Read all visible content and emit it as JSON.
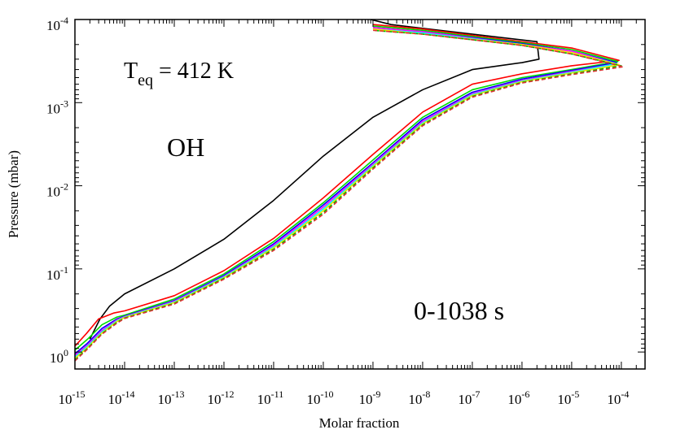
{
  "chart_data": {
    "type": "line",
    "title": "",
    "xlabel": "Molar fraction",
    "ylabel": "Pressure (mbar)",
    "x_scale": "log",
    "y_scale": "log",
    "y_inverted": true,
    "xlim": [
      1e-15,
      0.0003
    ],
    "ylim": [
      1.6,
      0.0001
    ],
    "grid": false,
    "x_ticks": [
      {
        "base": "10",
        "exp": "-15"
      },
      {
        "base": "10",
        "exp": "-14"
      },
      {
        "base": "10",
        "exp": "-13"
      },
      {
        "base": "10",
        "exp": "-12"
      },
      {
        "base": "10",
        "exp": "-11"
      },
      {
        "base": "10",
        "exp": "-10"
      },
      {
        "base": "10",
        "exp": "-9"
      },
      {
        "base": "10",
        "exp": "-8"
      },
      {
        "base": "10",
        "exp": "-7"
      },
      {
        "base": "10",
        "exp": "-6"
      },
      {
        "base": "10",
        "exp": "-5"
      },
      {
        "base": "10",
        "exp": "-4"
      }
    ],
    "y_ticks": [
      {
        "base": "10",
        "exp": "-4"
      },
      {
        "base": "10",
        "exp": "-3"
      },
      {
        "base": "10",
        "exp": "-2"
      },
      {
        "base": "10",
        "exp": "-1"
      },
      {
        "base": "10",
        "exp": "0"
      }
    ],
    "annotations": {
      "teq_main": "T",
      "teq_sub": "eq",
      "teq_value": " = 412 K",
      "species": "OH",
      "time_range": "0-1038 s"
    },
    "series": [
      {
        "color": "#000000",
        "dashed": false,
        "points": [
          [
            2e-15,
            0.7
          ],
          [
            3.2e-15,
            0.4
          ],
          [
            5e-15,
            0.28
          ],
          [
            1e-14,
            0.2
          ],
          [
            1e-13,
            0.1
          ],
          [
            1e-12,
            0.044
          ],
          [
            1e-11,
            0.015
          ],
          [
            1e-10,
            0.0044
          ],
          [
            1e-09,
            0.0015
          ],
          [
            1e-08,
            0.0007
          ],
          [
            1e-07,
            0.0004
          ],
          [
            1e-06,
            0.00033
          ],
          [
            2.2e-06,
            0.0003
          ],
          [
            2e-06,
            0.000185
          ],
          [
            2.3e-09,
            0.000115
          ],
          [
            9e-10,
            0.0001
          ]
        ]
      },
      {
        "color": "#ff0000",
        "dashed": false,
        "points": [
          [
            1e-15,
            0.85
          ],
          [
            1.7e-15,
            0.6
          ],
          [
            3e-15,
            0.4
          ],
          [
            6e-15,
            0.34
          ],
          [
            1e-14,
            0.32
          ],
          [
            1e-13,
            0.21
          ],
          [
            1e-12,
            0.105
          ],
          [
            1e-11,
            0.043
          ],
          [
            1e-10,
            0.014
          ],
          [
            1e-09,
            0.0042
          ],
          [
            1e-08,
            0.0013
          ],
          [
            1e-07,
            0.0006
          ],
          [
            1e-06,
            0.00045
          ],
          [
            1e-05,
            0.00036
          ],
          [
            9e-05,
            0.00031
          ],
          [
            1e-05,
            0.00022
          ],
          [
            1e-06,
            0.000185
          ],
          [
            1e-08,
            0.00013
          ],
          [
            1e-09,
            0.000115
          ]
        ]
      },
      {
        "color": "#00dd00",
        "dashed": false,
        "points": [
          [
            1e-15,
            0.95
          ],
          [
            1.8e-15,
            0.7
          ],
          [
            3.5e-15,
            0.47
          ],
          [
            7e-15,
            0.38
          ],
          [
            1e-14,
            0.36
          ],
          [
            1e-13,
            0.23
          ],
          [
            1e-12,
            0.115
          ],
          [
            1e-11,
            0.047
          ],
          [
            1e-10,
            0.016
          ],
          [
            1e-09,
            0.0049
          ],
          [
            1e-08,
            0.0015
          ],
          [
            1e-07,
            0.0007
          ],
          [
            1e-06,
            0.0005
          ],
          [
            1e-05,
            0.0004
          ],
          [
            8.5e-05,
            0.00032
          ],
          [
            1e-05,
            0.00023
          ],
          [
            1e-06,
            0.00019
          ],
          [
            1e-08,
            0.000135
          ],
          [
            1e-09,
            0.00012
          ]
        ]
      },
      {
        "color": "#0000ff",
        "dashed": false,
        "points": [
          [
            1e-15,
            1.05
          ],
          [
            1.8e-15,
            0.78
          ],
          [
            3.5e-15,
            0.52
          ],
          [
            7e-15,
            0.4
          ],
          [
            1e-14,
            0.37
          ],
          [
            1e-13,
            0.24
          ],
          [
            1e-12,
            0.12
          ],
          [
            1e-11,
            0.05
          ],
          [
            1e-10,
            0.017
          ],
          [
            1e-09,
            0.0053
          ],
          [
            1e-08,
            0.0016
          ],
          [
            1e-07,
            0.00075
          ],
          [
            1e-06,
            0.00052
          ],
          [
            1e-05,
            0.00041
          ],
          [
            8e-05,
            0.00033
          ],
          [
            1e-05,
            0.00024
          ],
          [
            1e-06,
            0.000195
          ],
          [
            1e-08,
            0.00014
          ],
          [
            1e-09,
            0.000125
          ]
        ]
      },
      {
        "color": "#ff00ff",
        "dashed": false,
        "points": [
          [
            1e-15,
            1.1
          ],
          [
            1.8e-15,
            0.82
          ],
          [
            3.5e-15,
            0.55
          ],
          [
            7e-15,
            0.41
          ],
          [
            1e-14,
            0.375
          ],
          [
            1e-13,
            0.245
          ],
          [
            1e-12,
            0.123
          ],
          [
            1e-11,
            0.052
          ],
          [
            1e-10,
            0.018
          ],
          [
            1e-09,
            0.0055
          ],
          [
            1e-08,
            0.00168
          ],
          [
            1e-07,
            0.00078
          ],
          [
            1e-06,
            0.00054
          ],
          [
            1e-05,
            0.00042
          ],
          [
            8e-05,
            0.00034
          ],
          [
            1e-05,
            0.00024
          ],
          [
            1e-06,
            0.0002
          ],
          [
            1e-08,
            0.00014
          ],
          [
            1e-09,
            0.000125
          ]
        ]
      },
      {
        "color": "#00ffff",
        "dashed": false,
        "points": [
          [
            1e-15,
            1.15
          ],
          [
            1.8e-15,
            0.85
          ],
          [
            3.5e-15,
            0.57
          ],
          [
            7e-15,
            0.42
          ],
          [
            1e-14,
            0.38
          ],
          [
            1e-13,
            0.25
          ],
          [
            1e-12,
            0.125
          ],
          [
            1e-11,
            0.054
          ],
          [
            1e-10,
            0.019
          ],
          [
            1e-09,
            0.0057
          ],
          [
            1e-08,
            0.00175
          ],
          [
            1e-07,
            0.0008
          ],
          [
            1e-06,
            0.00055
          ],
          [
            1e-05,
            0.00043
          ],
          [
            8e-05,
            0.00034
          ],
          [
            1e-05,
            0.00025
          ],
          [
            1e-06,
            0.0002
          ],
          [
            1e-08,
            0.000145
          ],
          [
            1e-09,
            0.00013
          ]
        ]
      },
      {
        "color": "#ffdd00",
        "dashed": false,
        "points": [
          [
            1e-15,
            1.2
          ],
          [
            1.8e-15,
            0.88
          ],
          [
            3.5e-15,
            0.59
          ],
          [
            7e-15,
            0.43
          ],
          [
            1e-14,
            0.385
          ],
          [
            1e-13,
            0.255
          ],
          [
            1e-12,
            0.128
          ],
          [
            1e-11,
            0.056
          ],
          [
            1e-10,
            0.02
          ],
          [
            1e-09,
            0.0059
          ],
          [
            1e-08,
            0.0018
          ],
          [
            1e-07,
            0.00082
          ],
          [
            1e-06,
            0.00056
          ],
          [
            1e-05,
            0.00044
          ],
          [
            9e-05,
            0.00035
          ],
          [
            1e-05,
            0.00025
          ],
          [
            1e-06,
            0.0002
          ],
          [
            1e-08,
            0.00015
          ],
          [
            1e-09,
            0.00013
          ]
        ]
      },
      {
        "color": "#00bb00",
        "dashed": true,
        "points": [
          [
            1e-15,
            1.25
          ],
          [
            1.8e-15,
            0.9
          ],
          [
            3.5e-15,
            0.6
          ],
          [
            7e-15,
            0.44
          ],
          [
            1e-14,
            0.39
          ],
          [
            1e-13,
            0.26
          ],
          [
            1e-12,
            0.13
          ],
          [
            1e-11,
            0.058
          ],
          [
            1e-10,
            0.021
          ],
          [
            1e-09,
            0.0061
          ],
          [
            1e-08,
            0.00185
          ],
          [
            1e-07,
            0.00084
          ],
          [
            1e-06,
            0.00057
          ],
          [
            1e-05,
            0.00045
          ],
          [
            0.0001,
            0.00036
          ],
          [
            1e-05,
            0.00026
          ],
          [
            1e-06,
            0.000205
          ],
          [
            1e-08,
            0.00015
          ],
          [
            1e-09,
            0.000135
          ]
        ]
      },
      {
        "color": "#dd3333",
        "dashed": true,
        "points": [
          [
            1e-15,
            1.28
          ],
          [
            1.8e-15,
            0.92
          ],
          [
            3.5e-15,
            0.61
          ],
          [
            7e-15,
            0.45
          ],
          [
            1e-14,
            0.395
          ],
          [
            1e-13,
            0.265
          ],
          [
            1e-12,
            0.133
          ],
          [
            1e-11,
            0.06
          ],
          [
            1e-10,
            0.022
          ],
          [
            1e-09,
            0.0063
          ],
          [
            1e-08,
            0.0019
          ],
          [
            1e-07,
            0.00086
          ],
          [
            1e-06,
            0.00058
          ],
          [
            1e-05,
            0.00046
          ],
          [
            0.00011,
            0.00037
          ],
          [
            1e-05,
            0.00026
          ],
          [
            1e-06,
            0.000205
          ],
          [
            1e-08,
            0.00015
          ],
          [
            1e-09,
            0.000135
          ]
        ]
      }
    ]
  }
}
